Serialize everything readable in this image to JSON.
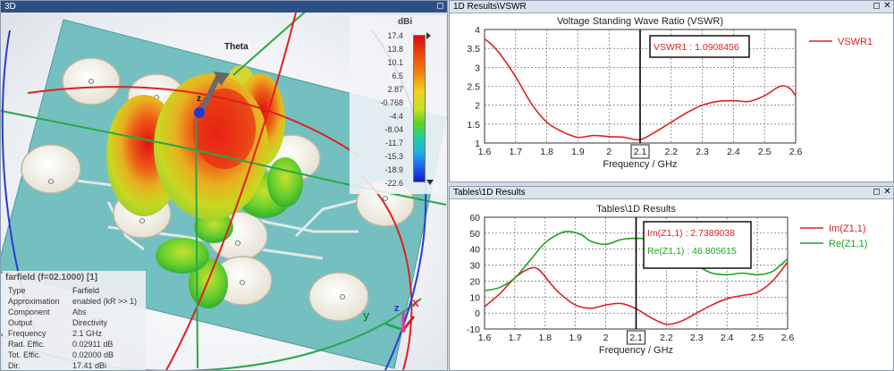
{
  "windows": {
    "view3d": {
      "title": "3D"
    },
    "vswr": {
      "title": "1D Results\\VSWR"
    },
    "tables": {
      "title": "Tables\\1D Results"
    }
  },
  "scene3d": {
    "theta_label": "Theta",
    "axis_label_z": "z",
    "triad_labels": {
      "x": "x",
      "y": "y",
      "z": "z"
    },
    "colors": {
      "board": "#74bfc0",
      "arc_red": "#e02020",
      "arc_blue": "#2a3cd0",
      "arc_green": "#27a848"
    }
  },
  "colorbar": {
    "unit": "dBi",
    "labels": [
      "17.4",
      "13.8",
      "10.1",
      "6.5",
      "2.87",
      "-0.768",
      "-4.4",
      "-8.04",
      "-11.7",
      "-15.3",
      "-18.9",
      "-22.6"
    ]
  },
  "infobox": {
    "title": "farfield (f=02.1000) [1]",
    "rows": [
      {
        "key": "Type",
        "value": "Farfield"
      },
      {
        "key": "Approximation",
        "value": "enabled (kR >> 1)"
      },
      {
        "key": "Component",
        "value": "Abs"
      },
      {
        "key": "Output",
        "value": "Directivity"
      },
      {
        "key": "Frequency",
        "value": "2.1 GHz"
      },
      {
        "key": "Rad. Effic.",
        "value": "0.02911 dB"
      },
      {
        "key": "Tot. Effic.",
        "value": "0.02000 dB"
      },
      {
        "key": "Dir.",
        "value": "17.41 dBi"
      }
    ]
  },
  "chart_data": [
    {
      "type": "line",
      "title": "Voltage Standing Wave Ratio (VSWR)",
      "xlabel": "Frequency / GHz",
      "ylabel": "",
      "xlim": [
        1.6,
        2.6
      ],
      "ylim": [
        1,
        4
      ],
      "xticks": [
        "1.6",
        "1.7",
        "1.8",
        "1.9",
        "2",
        "2.1",
        "2.2",
        "2.3",
        "2.4",
        "2.5",
        "2.6"
      ],
      "yticks": [
        "1",
        "1.5",
        "2",
        "2.5",
        "3",
        "3.5",
        "4"
      ],
      "highlight_tick": "2.1",
      "marker_x": 2.1,
      "grid": true,
      "legend_position": "right",
      "series": [
        {
          "name": "VSWR1",
          "color": "#e02020",
          "x": [
            1.6,
            1.62,
            1.65,
            1.7,
            1.75,
            1.8,
            1.85,
            1.9,
            1.95,
            2.0,
            2.05,
            2.1,
            2.15,
            2.2,
            2.25,
            2.3,
            2.35,
            2.4,
            2.45,
            2.5,
            2.55,
            2.58,
            2.6
          ],
          "y": [
            3.75,
            3.62,
            3.35,
            2.75,
            2.05,
            1.55,
            1.3,
            1.15,
            1.2,
            1.17,
            1.15,
            1.09,
            1.3,
            1.55,
            1.8,
            2.0,
            2.1,
            2.12,
            2.1,
            2.25,
            2.5,
            2.45,
            2.25
          ]
        }
      ],
      "annotations": [
        {
          "text": "VSWR1 : 1.0908456",
          "color": "#e02020"
        }
      ]
    },
    {
      "type": "line",
      "title": "Tables\\1D Results",
      "xlabel": "Frequency / GHz",
      "ylabel": "",
      "xlim": [
        1.6,
        2.6
      ],
      "ylim": [
        -10,
        60
      ],
      "xticks": [
        "1.6",
        "1.7",
        "1.8",
        "1.9",
        "2",
        "2.1",
        "2.2",
        "2.3",
        "2.4",
        "2.5",
        "2.6"
      ],
      "yticks": [
        "-10",
        "0",
        "10",
        "20",
        "30",
        "40",
        "50",
        "60"
      ],
      "highlight_tick": "2.1",
      "marker_x": 2.1,
      "grid": true,
      "legend_position": "right",
      "series": [
        {
          "name": "Im(Z1,1)",
          "color": "#e02020",
          "x": [
            1.6,
            1.65,
            1.7,
            1.75,
            1.78,
            1.82,
            1.85,
            1.9,
            1.95,
            2.0,
            2.05,
            2.1,
            2.15,
            2.2,
            2.25,
            2.3,
            2.35,
            2.4,
            2.45,
            2.5,
            2.55,
            2.6
          ],
          "y": [
            4,
            12,
            22,
            28,
            27,
            18,
            12,
            5,
            3,
            5,
            6,
            2.7,
            -3,
            -7,
            -5,
            0,
            5,
            9,
            11,
            13,
            20,
            32
          ]
        },
        {
          "name": "Re(Z1,1)",
          "color": "#20a020",
          "x": [
            1.6,
            1.65,
            1.7,
            1.75,
            1.8,
            1.85,
            1.88,
            1.92,
            1.95,
            2.0,
            2.05,
            2.1,
            2.15,
            2.2,
            2.25,
            2.3,
            2.35,
            2.4,
            2.45,
            2.5,
            2.55,
            2.6
          ],
          "y": [
            14,
            16,
            22,
            33,
            44,
            50,
            51,
            49,
            45,
            43,
            46,
            46.8,
            46,
            42,
            37,
            30,
            25,
            24,
            25,
            24,
            26,
            34
          ]
        }
      ],
      "annotations": [
        {
          "text": "Im(Z1,1) : 2.7389038",
          "color": "#e02020"
        },
        {
          "text": "Re(Z1,1) : 46.805615",
          "color": "#20a020"
        }
      ]
    }
  ]
}
